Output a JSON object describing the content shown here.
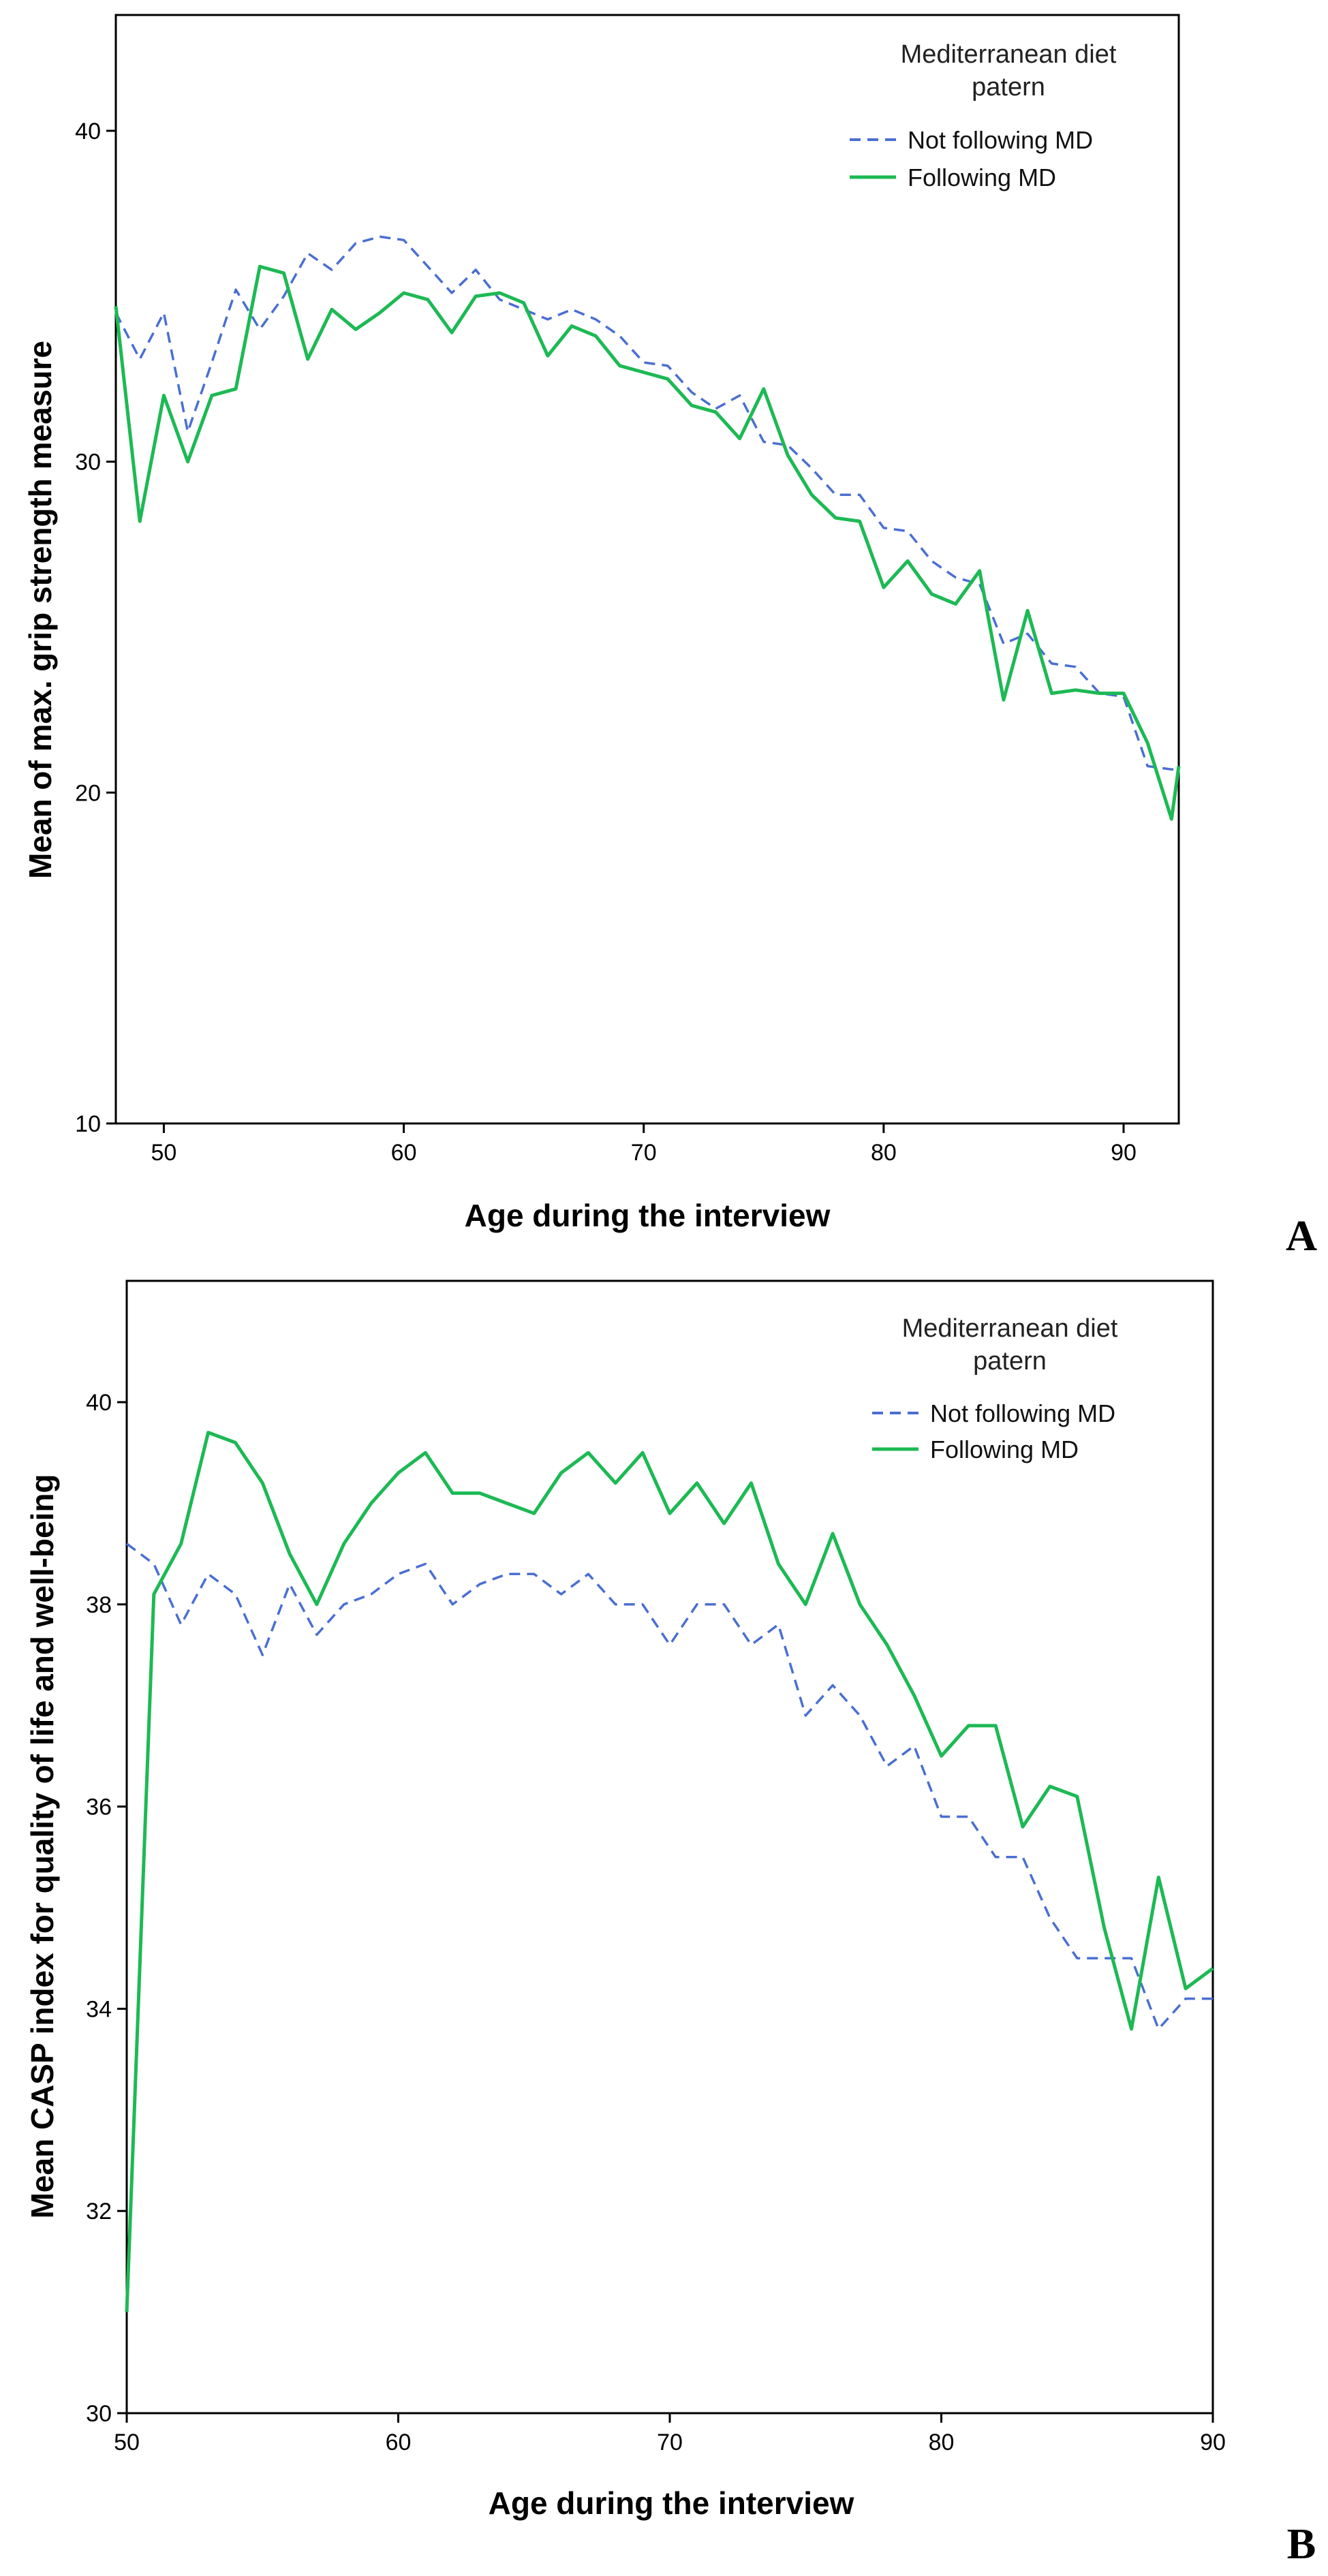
{
  "colors": {
    "not_following": "#4a6fd1",
    "following": "#1db954",
    "axis": "#000000"
  },
  "chart_data": [
    {
      "panel": "A",
      "type": "line",
      "xlabel": "Age during the interview",
      "ylabel": "Mean of max. grip strength measure",
      "xlim": [
        48,
        92.3
      ],
      "ylim": [
        10,
        43.5
      ],
      "xticks": [
        50,
        60,
        70,
        80,
        90
      ],
      "yticks": [
        10,
        20,
        30,
        40
      ],
      "legend_title_lines": [
        "Mediterranean diet",
        "patern"
      ],
      "series": [
        {
          "name": "Not following MD",
          "style": "dashed",
          "x": [
            48,
            49,
            50,
            51,
            52,
            53,
            54,
            55,
            56,
            57,
            58,
            59,
            60,
            61,
            62,
            63,
            64,
            65,
            66,
            67,
            68,
            69,
            70,
            71,
            72,
            73,
            74,
            75,
            76,
            77,
            78,
            79,
            80,
            81,
            82,
            83,
            84,
            85,
            86,
            87,
            88,
            89,
            90,
            91,
            92,
            92.3
          ],
          "y": [
            34.5,
            33.1,
            34.5,
            30.9,
            33.0,
            35.2,
            34.0,
            35.0,
            36.3,
            35.8,
            36.6,
            36.8,
            36.7,
            35.9,
            35.1,
            35.8,
            34.9,
            34.6,
            34.3,
            34.6,
            34.3,
            33.8,
            33.0,
            32.9,
            32.1,
            31.6,
            32.0,
            30.6,
            30.5,
            29.8,
            29.0,
            29.0,
            28.0,
            27.9,
            27.0,
            26.5,
            26.3,
            24.5,
            24.8,
            23.9,
            23.8,
            23.0,
            22.9,
            20.8,
            20.7,
            20.7
          ]
        },
        {
          "name": "Following MD",
          "style": "solid",
          "x": [
            48,
            49,
            50,
            51,
            52,
            53,
            54,
            55,
            56,
            57,
            58,
            59,
            60,
            61,
            62,
            63,
            64,
            65,
            66,
            67,
            68,
            69,
            70,
            71,
            72,
            73,
            74,
            75,
            76,
            77,
            78,
            79,
            80,
            81,
            82,
            83,
            84,
            85,
            86,
            87,
            88,
            89,
            90,
            91,
            92,
            92.3
          ],
          "y": [
            34.7,
            28.2,
            32.0,
            30.0,
            32.0,
            32.2,
            35.9,
            35.7,
            33.1,
            34.6,
            34.0,
            34.5,
            35.1,
            34.9,
            33.9,
            35.0,
            35.1,
            34.8,
            33.2,
            34.1,
            33.8,
            32.9,
            32.7,
            32.5,
            31.7,
            31.5,
            30.7,
            32.2,
            30.2,
            29.0,
            28.3,
            28.2,
            26.2,
            27.0,
            26.0,
            25.7,
            26.7,
            22.8,
            25.5,
            23.0,
            23.1,
            23.0,
            23.0,
            21.5,
            19.2,
            20.8
          ]
        }
      ]
    },
    {
      "panel": "B",
      "type": "line",
      "xlabel": "Age during the interview",
      "ylabel": "Mean CASP index for quality of life and well-being",
      "xlim": [
        50,
        90
      ],
      "ylim": [
        30,
        41.2
      ],
      "xticks": [
        50,
        60,
        70,
        80,
        90
      ],
      "yticks": [
        30,
        32,
        34,
        36,
        38,
        40
      ],
      "legend_title_lines": [
        "Mediterranean diet",
        "patern"
      ],
      "series": [
        {
          "name": "Not following MD",
          "style": "dashed",
          "x": [
            50,
            51,
            52,
            53,
            54,
            55,
            56,
            57,
            58,
            59,
            60,
            61,
            62,
            63,
            64,
            65,
            66,
            67,
            68,
            69,
            70,
            71,
            72,
            73,
            74,
            75,
            76,
            77,
            78,
            79,
            80,
            81,
            82,
            83,
            84,
            85,
            86,
            87,
            88,
            89,
            90
          ],
          "y": [
            38.6,
            38.4,
            37.8,
            38.3,
            38.1,
            37.5,
            38.2,
            37.7,
            38.0,
            38.1,
            38.3,
            38.4,
            38.0,
            38.2,
            38.3,
            38.3,
            38.1,
            38.3,
            38.0,
            38.0,
            37.6,
            38.0,
            38.0,
            37.6,
            37.8,
            36.9,
            37.2,
            36.9,
            36.4,
            36.6,
            35.9,
            35.9,
            35.5,
            35.5,
            34.9,
            34.5,
            34.5,
            34.5,
            33.8,
            34.1,
            34.1
          ]
        },
        {
          "name": "Following MD",
          "style": "solid",
          "x": [
            50,
            51,
            52,
            53,
            54,
            55,
            56,
            57,
            58,
            59,
            60,
            61,
            62,
            63,
            64,
            65,
            66,
            67,
            68,
            69,
            70,
            71,
            72,
            73,
            74,
            75,
            76,
            77,
            78,
            79,
            80,
            81,
            82,
            83,
            84,
            85,
            86,
            87,
            88,
            89,
            90
          ],
          "y": [
            31.0,
            38.1,
            38.6,
            39.7,
            39.6,
            39.2,
            38.5,
            38.0,
            38.6,
            39.0,
            39.3,
            39.5,
            39.1,
            39.1,
            39.0,
            38.9,
            39.3,
            39.5,
            39.2,
            39.5,
            38.9,
            39.2,
            38.8,
            39.2,
            38.4,
            38.0,
            38.7,
            38.0,
            37.6,
            37.1,
            36.5,
            36.8,
            36.8,
            35.8,
            36.2,
            36.1,
            34.8,
            33.8,
            35.3,
            34.2,
            34.4
          ]
        }
      ]
    }
  ]
}
